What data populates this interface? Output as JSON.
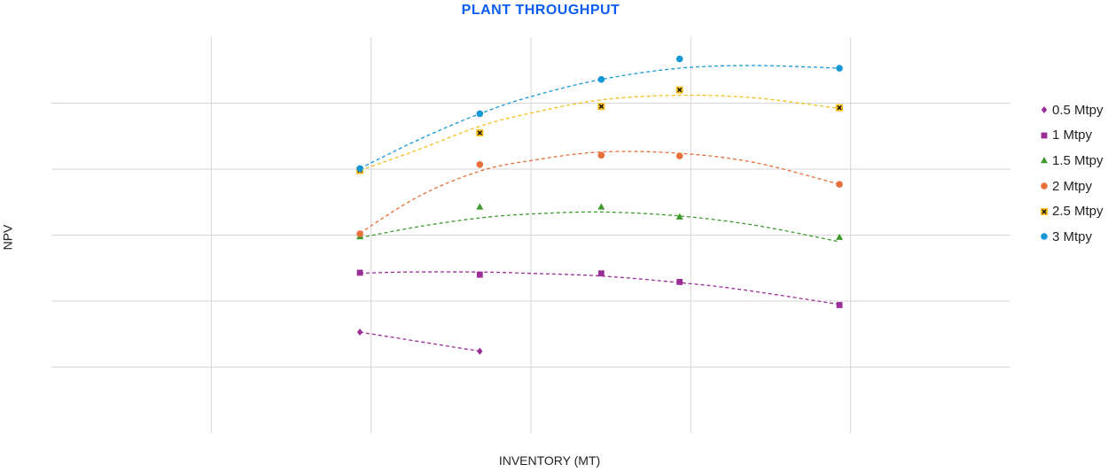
{
  "chart_data": {
    "type": "scatter",
    "title": "PLANT THROUGHPUT",
    "title_color": "#0B5CF0",
    "xlabel": "INVENTORY (MT)",
    "ylabel": "NPV",
    "xlim": [
      0,
      6
    ],
    "ylim": [
      0,
      6
    ],
    "grid": true,
    "legend_position": "right",
    "series": [
      {
        "name": "0.5 Mtpy",
        "marker": "diamond",
        "color": "#9B2D96",
        "x": [
          1.93,
          2.68
        ],
        "y": [
          1.53,
          1.24
        ],
        "trend": {
          "x": [
            1.93,
            2.68
          ],
          "y": [
            1.53,
            1.24
          ]
        }
      },
      {
        "name": "1 Mtpy",
        "marker": "square",
        "color": "#9B2D96",
        "x": [
          1.93,
          2.68,
          3.44,
          3.93,
          4.93
        ],
        "y": [
          2.43,
          2.4,
          2.42,
          2.29,
          1.94
        ],
        "trend": {
          "x": [
            1.93,
            2.2,
            2.68,
            3.0,
            3.44,
            3.93,
            4.3,
            4.93
          ],
          "y": [
            2.42,
            2.44,
            2.44,
            2.42,
            2.38,
            2.28,
            2.18,
            1.95
          ]
        }
      },
      {
        "name": "1.5 Mtpy",
        "marker": "triangle",
        "color": "#3F9A2E",
        "x": [
          1.93,
          2.68,
          3.44,
          3.93,
          4.93
        ],
        "y": [
          2.98,
          3.43,
          3.43,
          3.28,
          2.97
        ],
        "trend": {
          "x": [
            1.93,
            2.3,
            2.68,
            3.0,
            3.44,
            3.93,
            4.4,
            4.93
          ],
          "y": [
            2.96,
            3.13,
            3.26,
            3.32,
            3.35,
            3.29,
            3.15,
            2.9
          ]
        }
      },
      {
        "name": "2 Mtpy",
        "marker": "circle",
        "color": "#E6703A",
        "x": [
          1.93,
          2.68,
          3.44,
          3.93,
          4.93
        ],
        "y": [
          3.02,
          4.07,
          4.21,
          4.2,
          3.77
        ],
        "trend": {
          "x": [
            1.93,
            2.3,
            2.68,
            3.0,
            3.44,
            3.93,
            4.4,
            4.93
          ],
          "y": [
            3.03,
            3.59,
            3.97,
            4.13,
            4.26,
            4.24,
            4.1,
            3.77
          ]
        }
      },
      {
        "name": "2.5 Mtpy",
        "marker": "x-box",
        "color": "#F5BE1E",
        "x": [
          1.93,
          2.68,
          3.44,
          3.93,
          4.93
        ],
        "y": [
          3.98,
          4.55,
          4.95,
          5.2,
          4.93
        ],
        "trend": {
          "x": [
            1.93,
            2.3,
            2.68,
            3.0,
            3.44,
            3.93,
            4.4,
            4.93
          ],
          "y": [
            3.98,
            4.3,
            4.65,
            4.85,
            5.05,
            5.12,
            5.08,
            4.92
          ]
        }
      },
      {
        "name": "3 Mtpy",
        "marker": "circle",
        "color": "#1798D6",
        "x": [
          1.93,
          2.68,
          3.44,
          3.93,
          4.93
        ],
        "y": [
          4.01,
          4.84,
          5.36,
          5.67,
          5.53
        ],
        "trend": {
          "x": [
            1.93,
            2.3,
            2.68,
            3.0,
            3.44,
            3.93,
            4.4,
            4.93
          ],
          "y": [
            4.01,
            4.45,
            4.84,
            5.1,
            5.36,
            5.53,
            5.57,
            5.53
          ]
        }
      }
    ]
  }
}
